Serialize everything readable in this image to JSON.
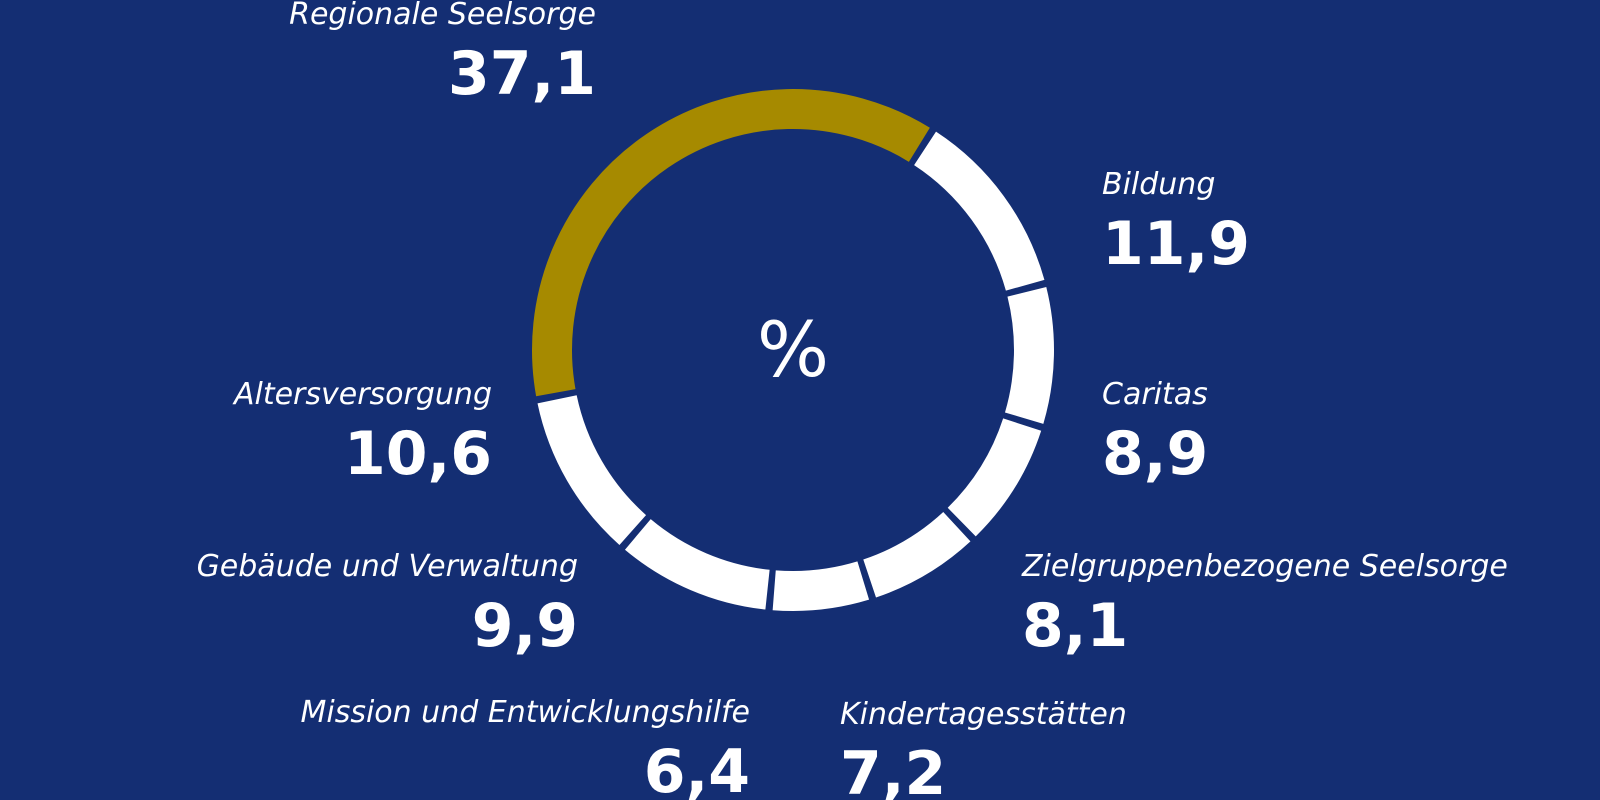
{
  "chart_data": {
    "type": "pie",
    "center_label": "%",
    "colors": {
      "background": "#142e73",
      "highlight": "#a68a00",
      "default": "#ffffff"
    },
    "slices": [
      {
        "label": "Regionale Seelsorge",
        "value": 37.1,
        "display": "37,1",
        "highlight": true
      },
      {
        "label": "Bildung",
        "value": 11.9,
        "display": "11,9"
      },
      {
        "label": "Caritas",
        "value": 8.9,
        "display": "8,9"
      },
      {
        "label": "Zielgruppenbezogene Seelsorge",
        "value": 8.1,
        "display": "8,1"
      },
      {
        "label": "Kindertagesstätten",
        "value": 7.2,
        "display": "7,2"
      },
      {
        "label": "Mission und Entwicklungshilfe",
        "value": 6.4,
        "display": "6,4"
      },
      {
        "label": "Gebäude und Verwaltung",
        "value": 9.9,
        "display": "9,9"
      },
      {
        "label": "Altersversorgung",
        "value": 10.6,
        "display": "10,6"
      }
    ]
  }
}
